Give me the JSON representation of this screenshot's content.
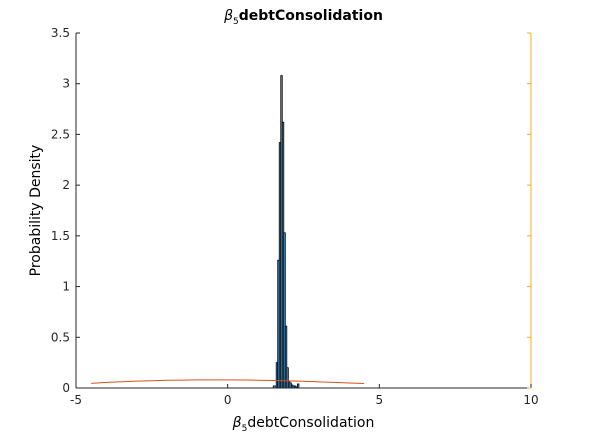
{
  "chart_data": {
    "type": "bar",
    "title": {
      "greek": "β",
      "sub": "5",
      "text": "debtConsolidation"
    },
    "xlabel": {
      "greek": "β",
      "sub": "5",
      "text": "debtConsolidation"
    },
    "ylabel": "Probability Density",
    "xlim": [
      -5,
      10
    ],
    "ylim": [
      0,
      3.5
    ],
    "xticks": [
      -5,
      0,
      5,
      10
    ],
    "xtick_labels": [
      "-5",
      "0",
      "5",
      "10"
    ],
    "yticks": [
      0,
      0.5,
      1,
      1.5,
      2,
      2.5,
      3,
      3.5
    ],
    "ytick_labels": [
      "0",
      "0.5",
      "1",
      "1.5",
      "2",
      "2.5",
      "3",
      "3.5"
    ],
    "grid": false,
    "colors": {
      "bar_fill": "#4fa3e0",
      "bar_edge": "#000000",
      "prior_line": "#d95319",
      "right_axis": "#edb120",
      "axis": "#262626"
    },
    "histogram": {
      "bin_edges": [
        1.5,
        1.6,
        1.65,
        1.7,
        1.75,
        1.8,
        1.85,
        1.9,
        1.95,
        2.0,
        2.05,
        2.1,
        2.15,
        2.2,
        2.25,
        2.3,
        2.35
      ],
      "densities": [
        0.02,
        0.25,
        1.26,
        2.42,
        3.08,
        2.62,
        1.53,
        0.61,
        0.2,
        0.07,
        0.05,
        0.03,
        0.02,
        0.02,
        0.01,
        0.04
      ]
    },
    "prior_curve": {
      "x": [
        -4.5,
        -4.0,
        -3.5,
        -3.0,
        -2.5,
        -2.0,
        -1.5,
        -1.0,
        -0.5,
        0.0,
        0.5,
        1.0,
        1.5,
        2.0,
        2.5,
        3.0,
        3.5,
        4.0,
        4.5
      ],
      "y": [
        0.045,
        0.055,
        0.062,
        0.068,
        0.072,
        0.076,
        0.078,
        0.08,
        0.08,
        0.08,
        0.079,
        0.077,
        0.074,
        0.07,
        0.066,
        0.061,
        0.055,
        0.049,
        0.044
      ]
    }
  }
}
